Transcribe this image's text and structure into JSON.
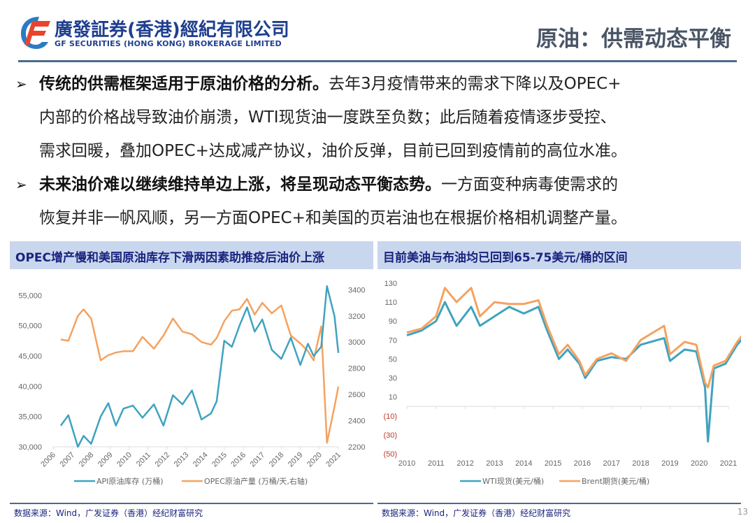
{
  "header": {
    "logo_cn": "廣發証券(香港)經紀有限公司",
    "logo_en": "GF SECURITIES (HONG KONG) BROKERAGE LIMITED",
    "page_title": "原油：供需动态平衡"
  },
  "bullets": [
    {
      "bold": "传统的供需框架适用于原油价格的分析。",
      "lines": [
        "去年3月疫情带来的需求下降以及OPEC+",
        "内部的价格战导致油价崩溃，WTI现货油一度跌至负数；此后随着疫情逐步受控、",
        "需求回暖，叠加OPEC+达成减产协议，油价反弹，目前已回到疫情前的高位水准。"
      ]
    },
    {
      "bold": "未来油价难以继续维持单边上涨，将呈现动态平衡态势。",
      "lines": [
        "一方面变种病毒使需求的",
        "恢复并非一帆风顺，另一方面OPEC+和美国的页岩油也在根据价格相机调整产量。"
      ]
    }
  ],
  "footer": {
    "source_left": "数据来源：Wind，广发证券（香港）经纪财富研究",
    "source_right": "数据来源：Wind，广发证券（香港）经纪财富研究",
    "page_number": "13"
  },
  "colors": {
    "blue_series": "#3fa3bf",
    "orange_series": "#f4a261",
    "title_bar": "#c9d7ee",
    "title_text": "#1a237e",
    "rule": "#4a6a8a",
    "negative_tick": "#c0392b"
  },
  "chart_data": [
    {
      "type": "line",
      "title": "OPEC增产慢和美国原油库存下滑两因素助推疫后油价上涨",
      "xlabel": "",
      "ylabel": "API原油库存 (万桶)",
      "ylabel_right": "OPEC原油产量 (万桶/天,右轴)",
      "x_ticks": [
        "2006",
        "2007",
        "2008",
        "2009",
        "2010",
        "2011",
        "2012",
        "2013",
        "2014",
        "2015",
        "2016",
        "2017",
        "2018",
        "2019",
        "2020",
        "2021"
      ],
      "y_ticks_left": [
        "30,000",
        "35,000",
        "40,000",
        "45,000",
        "50,000",
        "55,000"
      ],
      "y_ticks_right": [
        "2200",
        "2400",
        "2600",
        "2800",
        "3000",
        "3200",
        "3400"
      ],
      "ylim_left": [
        30000,
        57000
      ],
      "ylim_right": [
        2200,
        3400
      ],
      "legend_position": "bottom",
      "grid": false,
      "x": [
        2006.4,
        2006.8,
        2007.3,
        2007.6,
        2008.0,
        2008.5,
        2008.9,
        2009.3,
        2009.7,
        2010.2,
        2010.7,
        2011.3,
        2011.8,
        2012.3,
        2012.8,
        2013.3,
        2013.8,
        2014.3,
        2014.6,
        2015.0,
        2015.4,
        2015.8,
        2016.2,
        2016.6,
        2017.0,
        2017.5,
        2018.0,
        2018.5,
        2019.0,
        2019.4,
        2019.7,
        2020.1,
        2020.4,
        2020.8,
        2021.0
      ],
      "series": [
        {
          "name": "API原油库存 (万桶)",
          "axis": "left",
          "values": [
            33500,
            35200,
            30000,
            31800,
            30500,
            35000,
            37200,
            33500,
            36300,
            36800,
            34800,
            37000,
            33500,
            38500,
            37000,
            39300,
            34500,
            35500,
            37500,
            47500,
            46500,
            50000,
            53000,
            49000,
            51000,
            46000,
            44500,
            48000,
            43500,
            47000,
            45000,
            46500,
            56500,
            51500,
            45500
          ]
        },
        {
          "name": "OPEC原油产量 (万桶/天,右轴)",
          "axis": "right",
          "values": [
            3020,
            3010,
            3200,
            3250,
            3180,
            2860,
            2900,
            2920,
            2930,
            2930,
            3040,
            2950,
            3050,
            3180,
            3080,
            3060,
            3000,
            2980,
            3030,
            3160,
            3240,
            3250,
            3330,
            3210,
            3300,
            3220,
            3280,
            3050,
            2990,
            2930,
            2860,
            3120,
            2230,
            2510,
            2660
          ]
        }
      ]
    },
    {
      "type": "line",
      "title": "目前美油与布油均已回到65-75美元/桶的区间",
      "xlabel": "",
      "ylabel": "美元/桶",
      "x_ticks": [
        "2010",
        "2011",
        "2012",
        "2013",
        "2014",
        "2015",
        "2016",
        "2017",
        "2018",
        "2019",
        "2020",
        "2021"
      ],
      "y_ticks": [
        "130",
        "110",
        "90",
        "70",
        "50",
        "30",
        "10",
        "(10)",
        "(30)",
        "(50)"
      ],
      "ylim": [
        -50,
        130
      ],
      "legend_position": "bottom",
      "grid": false,
      "x": [
        2010.0,
        2010.5,
        2011.0,
        2011.3,
        2011.7,
        2012.2,
        2012.5,
        2013.0,
        2013.5,
        2014.0,
        2014.5,
        2014.8,
        2015.2,
        2015.5,
        2015.9,
        2016.1,
        2016.5,
        2017.0,
        2017.5,
        2018.0,
        2018.8,
        2019.0,
        2019.5,
        2019.9,
        2020.2,
        2020.3,
        2020.5,
        2020.9,
        2021.3,
        2021.5
      ],
      "series": [
        {
          "name": "WTI现货(美元/桶)",
          "values": [
            75,
            80,
            90,
            110,
            85,
            105,
            85,
            95,
            105,
            98,
            105,
            80,
            50,
            60,
            45,
            30,
            48,
            52,
            50,
            65,
            72,
            48,
            60,
            58,
            20,
            -37,
            40,
            45,
            65,
            72
          ]
        },
        {
          "name": "Brent期货(美元/桶)",
          "values": [
            78,
            82,
            95,
            125,
            110,
            125,
            95,
            110,
            108,
            108,
            112,
            85,
            55,
            65,
            48,
            33,
            50,
            56,
            48,
            70,
            85,
            55,
            68,
            65,
            25,
            20,
            43,
            48,
            68,
            76
          ]
        }
      ]
    }
  ]
}
